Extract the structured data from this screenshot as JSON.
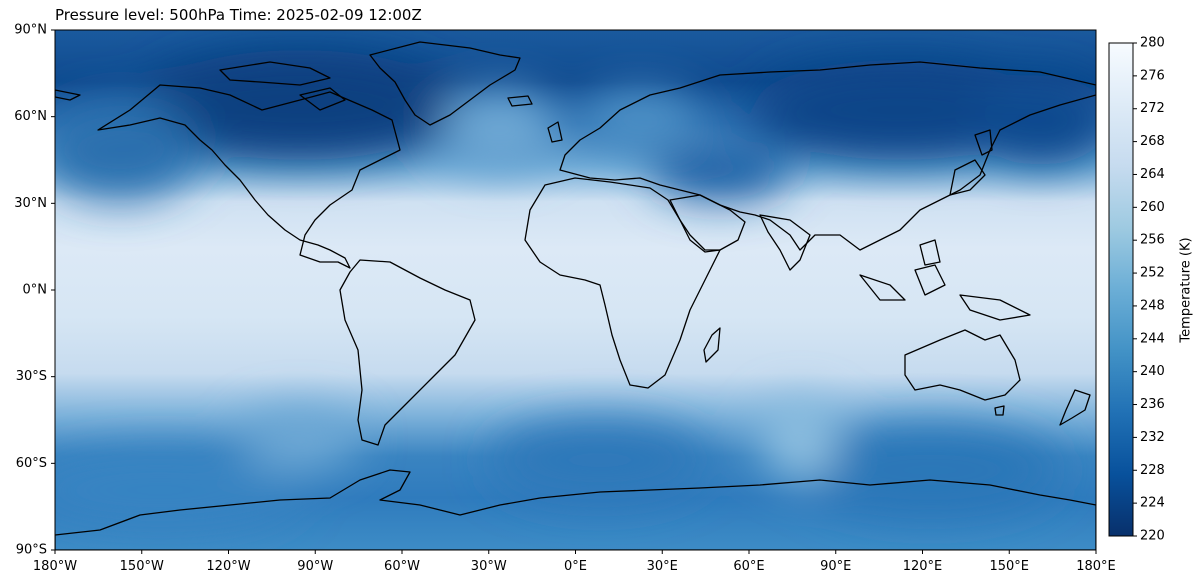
{
  "title": "Pressure level: 500hPa Time: 2025-02-09 12:00Z",
  "chart_data": {
    "type": "heatmap",
    "projection": "PlateCarree",
    "field": "temperature",
    "colormap": "Blues_r",
    "x_ticks": [
      "180°W",
      "150°W",
      "120°W",
      "90°W",
      "60°W",
      "30°W",
      "0°E",
      "30°E",
      "60°E",
      "90°E",
      "120°E",
      "150°E",
      "180°E"
    ],
    "x_tick_values": [
      -180,
      -150,
      -120,
      -90,
      -60,
      -30,
      0,
      30,
      60,
      90,
      120,
      150,
      180
    ],
    "y_ticks": [
      "90°N",
      "60°N",
      "30°N",
      "0°N",
      "30°S",
      "60°S",
      "90°S"
    ],
    "y_tick_values": [
      90,
      60,
      30,
      0,
      -30,
      -60,
      -90
    ],
    "xlim": [
      -180,
      180
    ],
    "ylim": [
      -90,
      90
    ],
    "colorbar": {
      "label": "Temperature (K)",
      "range": [
        220,
        280
      ],
      "ticks": [
        220,
        224,
        228,
        232,
        236,
        240,
        244,
        248,
        252,
        256,
        260,
        264,
        268,
        272,
        276,
        280
      ],
      "position": "right"
    }
  },
  "colors": {
    "cold": "#08306b",
    "mid": "#4a98c9",
    "warm": "#f7fbff"
  }
}
